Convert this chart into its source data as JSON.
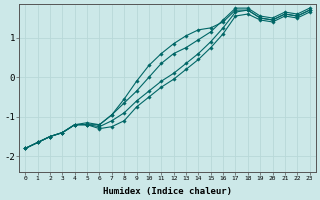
{
  "title": "",
  "xlabel": "Humidex (Indice chaleur)",
  "ylabel": "",
  "bg_color": "#cce8e8",
  "grid_color": "#b8d8d8",
  "line_color": "#006666",
  "xlim": [
    -0.5,
    23.5
  ],
  "ylim": [
    -2.4,
    1.85
  ],
  "yticks": [
    -2,
    -1,
    0,
    1
  ],
  "xticks": [
    0,
    1,
    2,
    3,
    4,
    5,
    6,
    7,
    8,
    9,
    10,
    11,
    12,
    13,
    14,
    15,
    16,
    17,
    18,
    19,
    20,
    21,
    22,
    23
  ],
  "lines": [
    {
      "x": [
        0,
        1,
        2,
        3,
        4,
        5,
        6,
        7,
        8,
        9,
        10,
        11,
        12,
        13,
        14,
        15,
        16,
        17,
        18,
        19,
        20,
        21,
        22,
        23
      ],
      "y": [
        -1.8,
        -1.65,
        -1.5,
        -1.4,
        -1.2,
        -1.2,
        -1.3,
        -1.25,
        -1.1,
        -0.75,
        -0.5,
        -0.25,
        -0.05,
        0.2,
        0.45,
        0.75,
        1.1,
        1.55,
        1.6,
        1.45,
        1.4,
        1.55,
        1.5,
        1.65
      ]
    },
    {
      "x": [
        0,
        1,
        2,
        3,
        4,
        5,
        6,
        7,
        8,
        9,
        10,
        11,
        12,
        13,
        14,
        15,
        16,
        17,
        18,
        19,
        20,
        21,
        22,
        23
      ],
      "y": [
        -1.8,
        -1.65,
        -1.5,
        -1.4,
        -1.2,
        -1.2,
        -1.25,
        -1.1,
        -0.9,
        -0.6,
        -0.35,
        -0.1,
        0.1,
        0.35,
        0.6,
        0.9,
        1.25,
        1.65,
        1.7,
        1.5,
        1.45,
        1.6,
        1.55,
        1.7
      ]
    },
    {
      "x": [
        0,
        1,
        2,
        3,
        4,
        5,
        6,
        7,
        8,
        9,
        10,
        11,
        12,
        13,
        14,
        15,
        16,
        17,
        18,
        19,
        20,
        21,
        22,
        23
      ],
      "y": [
        -1.8,
        -1.65,
        -1.5,
        -1.4,
        -1.2,
        -1.15,
        -1.2,
        -0.95,
        -0.65,
        -0.35,
        0.0,
        0.35,
        0.6,
        0.75,
        0.95,
        1.15,
        1.45,
        1.75,
        1.75,
        1.55,
        1.5,
        1.65,
        1.6,
        1.75
      ]
    },
    {
      "x": [
        0,
        1,
        2,
        3,
        4,
        5,
        6,
        7,
        8,
        9,
        10,
        11,
        12,
        13,
        14,
        15,
        16,
        17,
        18,
        19,
        20,
        21,
        22,
        23
      ],
      "y": [
        -1.8,
        -1.65,
        -1.5,
        -1.4,
        -1.2,
        -1.2,
        -1.2,
        -0.95,
        -0.55,
        -0.1,
        0.3,
        0.6,
        0.85,
        1.05,
        1.2,
        1.25,
        1.4,
        1.7,
        1.7,
        1.5,
        1.45,
        1.6,
        1.55,
        1.7
      ]
    }
  ]
}
